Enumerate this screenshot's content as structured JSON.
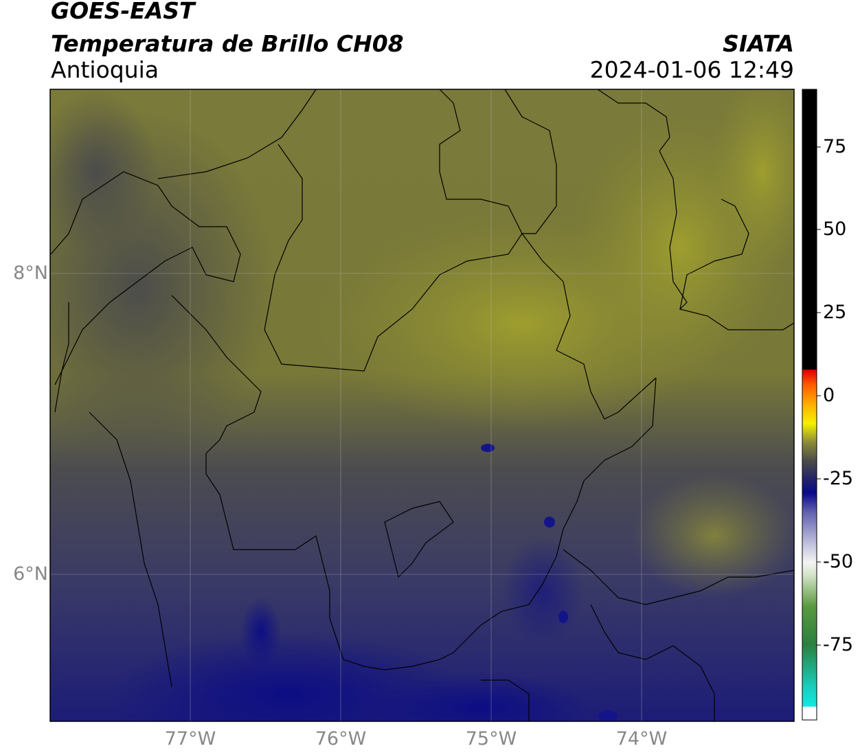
{
  "header": {
    "satellite": "GOES-EAST",
    "product": "Temperatura de Brillo CH08",
    "region": "Antioquia",
    "organization": "SIATA",
    "timestamp": "2024-01-06 12:49"
  },
  "map": {
    "lon_ticks": [
      "77°W",
      "76°W",
      "75°W",
      "74°W"
    ],
    "lat_ticks": [
      "8°N",
      "6°N"
    ],
    "extent": {
      "lon": [
        -77.95,
        -73.0
      ],
      "lat": [
        5.05,
        9.25
      ]
    }
  },
  "colorbar": {
    "tick_labels": [
      "75",
      "50",
      "25",
      "0",
      "-25",
      "-50",
      "-75"
    ],
    "range": [
      -95,
      92
    ],
    "colors": {
      "top": "#000000",
      "warm": [
        "#e00000",
        "#ff7a00",
        "#ffd000",
        "#f5f000",
        "#9a9a30"
      ],
      "mid": [
        "#4a4a4a",
        "#1a1a80",
        "#0a0a8a",
        "#8080c0",
        "#e8e8ee"
      ],
      "cold": [
        "#d4e4c8",
        "#5a9a40",
        "#2a8040",
        "#20c0a0",
        "#10e8e0",
        "#ffffff"
      ]
    }
  }
}
